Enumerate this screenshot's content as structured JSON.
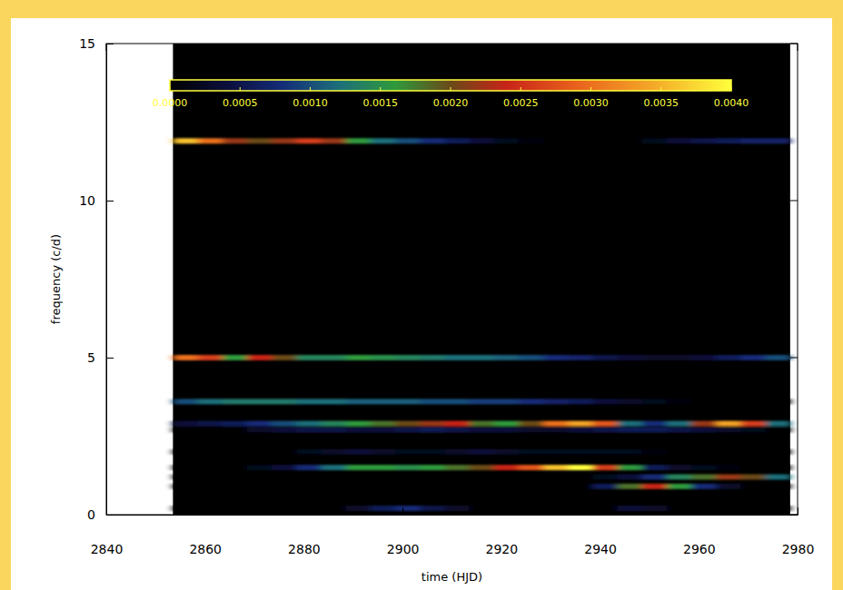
{
  "chart_data": {
    "type": "heatmap",
    "xlabel": "time (HJD)",
    "ylabel": "frequency (c/d)",
    "xlim": [
      2840,
      2980
    ],
    "xticks": [
      2840,
      2860,
      2880,
      2900,
      2920,
      2940,
      2960,
      2980
    ],
    "ylim": [
      0,
      15
    ],
    "yticks": [
      0,
      5,
      10,
      15
    ],
    "x": [
      2856,
      2861,
      2866,
      2871,
      2876,
      2881,
      2886,
      2891,
      2896,
      2901,
      2906,
      2911,
      2916,
      2921,
      2926,
      2931,
      2936,
      2941,
      2946,
      2951,
      2956,
      2961,
      2966,
      2971,
      2976
    ],
    "y": [
      11.9,
      5,
      3.6,
      2.9,
      2.7,
      2.0,
      1.5,
      1.2,
      0.9,
      0.2
    ],
    "cells": [
      [
        0.0036,
        0.003,
        0.0022,
        0.002,
        0.0022,
        0.0026,
        0.0022,
        0.0016,
        0.0012,
        0.001,
        0.0008,
        0.0006,
        0.0004,
        0.0002,
        0.0001,
        0,
        0,
        0,
        0,
        0.0002,
        0.0004,
        0.0005,
        0.0006,
        0.0007,
        0.0007
      ],
      [
        0.003,
        0.0026,
        0.0016,
        0.0024,
        0.002,
        0.0014,
        0.0014,
        0.0016,
        0.0015,
        0.0014,
        0.0013,
        0.0012,
        0.0012,
        0.0011,
        0.001,
        0.0008,
        0.0007,
        0.0005,
        0.0004,
        0.0003,
        0.0003,
        0.0004,
        0.0006,
        0.0008,
        0.001
      ],
      [
        0.001,
        0.0012,
        0.0013,
        0.0013,
        0.0013,
        0.0012,
        0.0012,
        0.0011,
        0.0011,
        0.0011,
        0.001,
        0.001,
        0.0009,
        0.0009,
        0.0008,
        0.0007,
        0.0006,
        0.0004,
        0.0003,
        0.0002,
        0.0001,
        0,
        0,
        0,
        0
      ],
      [
        0.0004,
        0.0005,
        0.0006,
        0.0008,
        0.001,
        0.0012,
        0.0014,
        0.0016,
        0.0018,
        0.002,
        0.0022,
        0.0024,
        0.0018,
        0.0016,
        0.002,
        0.003,
        0.0034,
        0.0028,
        0.0012,
        0.0008,
        0.0012,
        0.0022,
        0.0034,
        0.0026,
        0.0012
      ],
      [
        0,
        0,
        0,
        0.0003,
        0.0004,
        0.0005,
        0.0005,
        0.0004,
        0.0004,
        0.0005,
        0.0006,
        0.0005,
        0.0004,
        0.0004,
        0.0003,
        0.0003,
        0.0004,
        0.0005,
        0.0006,
        0.0006,
        0.0005,
        0.0004,
        0.0003,
        0.0002,
        0
      ],
      [
        0,
        0,
        0,
        0,
        0,
        0.0002,
        0.0003,
        0.0004,
        0.0003,
        0.0002,
        0.0002,
        0.0003,
        0.0004,
        0.0003,
        0.0002,
        0.0002,
        0.0002,
        0.0002,
        0.0002,
        0.0001,
        0,
        0,
        0,
        0,
        0
      ],
      [
        0,
        0,
        0,
        0.0002,
        0.0004,
        0.0008,
        0.0012,
        0.0016,
        0.0016,
        0.0015,
        0.0016,
        0.0018,
        0.002,
        0.0024,
        0.0028,
        0.0036,
        0.004,
        0.0026,
        0.0016,
        0.0006,
        0.0003,
        0.0002,
        0.0001,
        0,
        0
      ],
      [
        0,
        0,
        0,
        0,
        0,
        0,
        0,
        0,
        0,
        0,
        0,
        0,
        0,
        0,
        0,
        0,
        0,
        0.0002,
        0.0004,
        0.0008,
        0.0014,
        0.0018,
        0.0022,
        0.002,
        0.0012
      ],
      [
        0,
        0,
        0,
        0,
        0,
        0,
        0,
        0,
        0,
        0,
        0,
        0,
        0,
        0,
        0,
        0,
        0,
        0.0006,
        0.0018,
        0.0024,
        0.0016,
        0.0008,
        0.0003,
        0,
        0
      ],
      [
        0,
        0,
        0,
        0,
        0,
        0,
        0,
        0.0003,
        0.0006,
        0.0008,
        0.0005,
        0.0003,
        0,
        0,
        0,
        0,
        0,
        0,
        0.0004,
        0.0003,
        0,
        0,
        0,
        0,
        0
      ]
    ],
    "colorbar": {
      "range": [
        0,
        0.004
      ],
      "ticks": [
        {
          "value": 0,
          "label": "0.0000"
        },
        {
          "value": 0.0005,
          "label": "0.0005"
        },
        {
          "value": 0.001,
          "label": "0.0010"
        },
        {
          "value": 0.0015,
          "label": "0.0015"
        },
        {
          "value": 0.002,
          "label": "0.0020"
        },
        {
          "value": 0.0025,
          "label": "0.0025"
        },
        {
          "value": 0.003,
          "label": "0.0030"
        },
        {
          "value": 0.0035,
          "label": "0.0035"
        },
        {
          "value": 0.004,
          "label": "0.0040"
        }
      ]
    }
  }
}
